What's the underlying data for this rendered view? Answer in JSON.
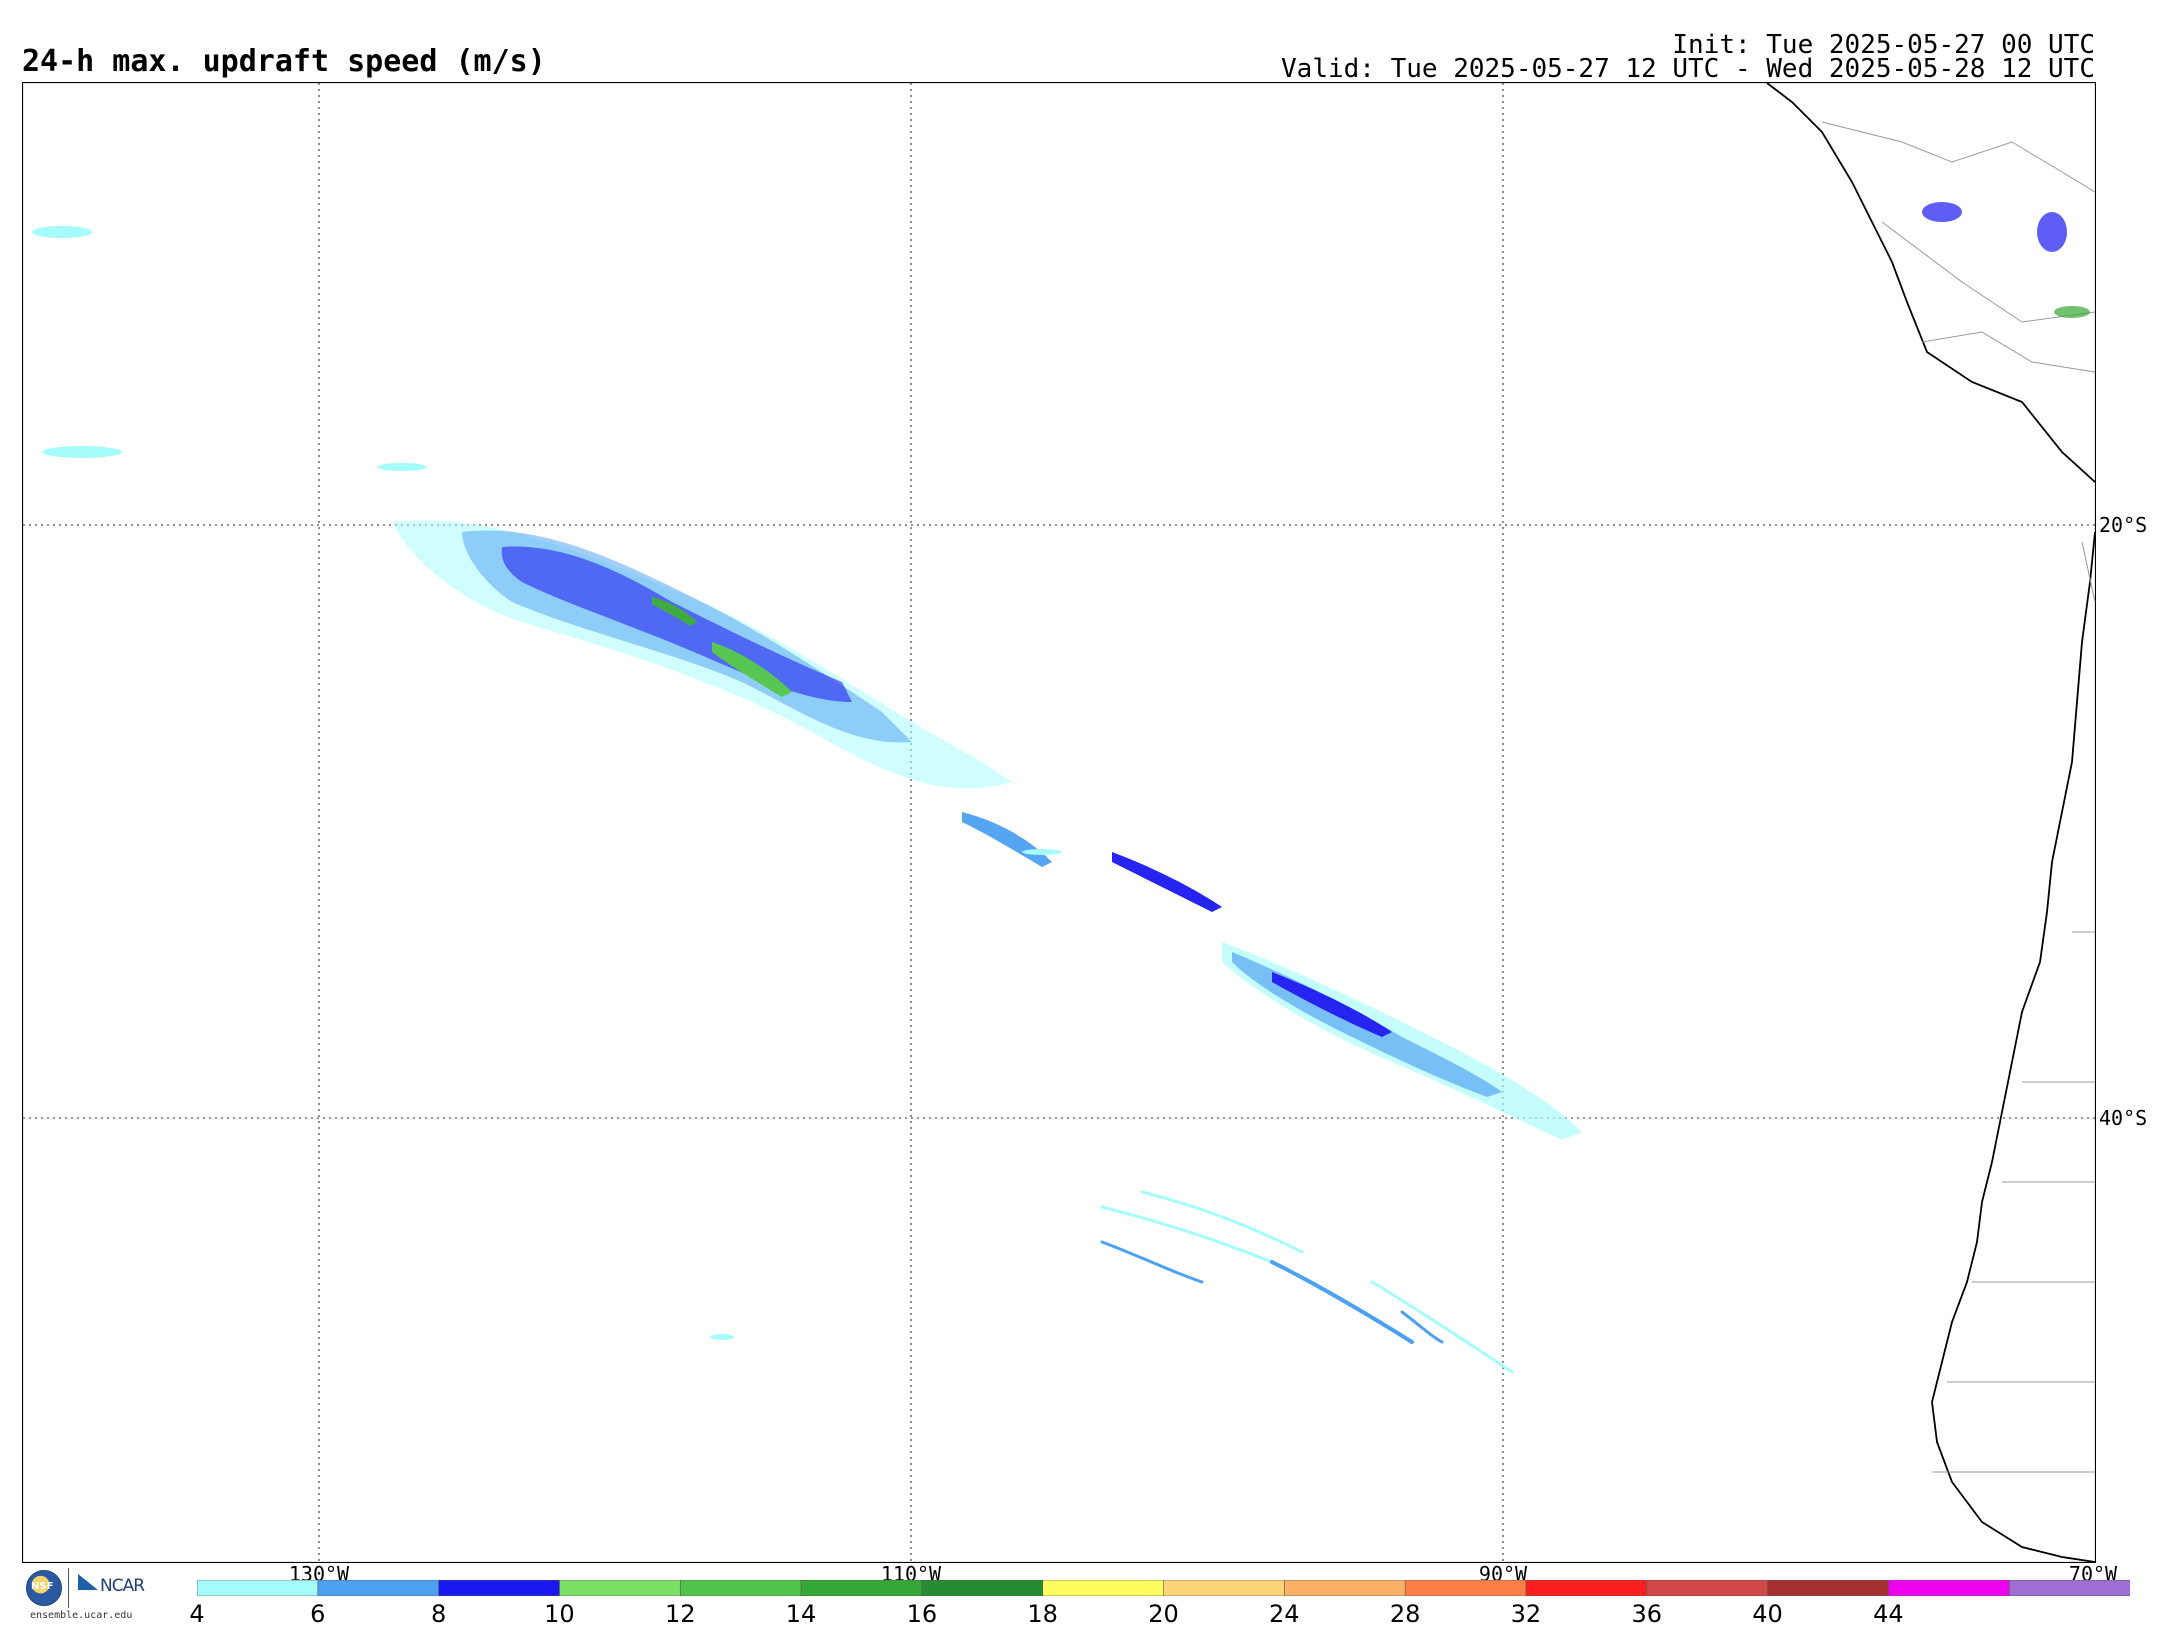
{
  "title": "24-h max. updraft speed (m/s)",
  "init": "Init: Tue 2025-05-27 00 UTC",
  "valid": "Valid: Tue 2025-05-27 12 UTC - Wed 2025-05-28 12 UTC",
  "lon_labels": [
    "130°W",
    "110°W",
    "90°W",
    "70°W"
  ],
  "lat_labels": [
    "20°S",
    "40°S"
  ],
  "colorbar": {
    "ticks": [
      "4",
      "6",
      "8",
      "10",
      "12",
      "14",
      "16",
      "18",
      "20",
      "24",
      "28",
      "32",
      "36",
      "40",
      "44"
    ],
    "colors": [
      "#a6fbfb",
      "#4da1f2",
      "#1a19f1",
      "#7ae166",
      "#50c34a",
      "#35a736",
      "#268b32",
      "#fdfd5d",
      "#fcd377",
      "#fcb066",
      "#fd7f48",
      "#fb1e1e",
      "#d04848",
      "#a63030",
      "#ef03ef",
      "#9e6ed3"
    ]
  },
  "logos": {
    "nsf": "NSF",
    "ncar": "NCAR",
    "site": "ensemble.ucar.edu"
  }
}
